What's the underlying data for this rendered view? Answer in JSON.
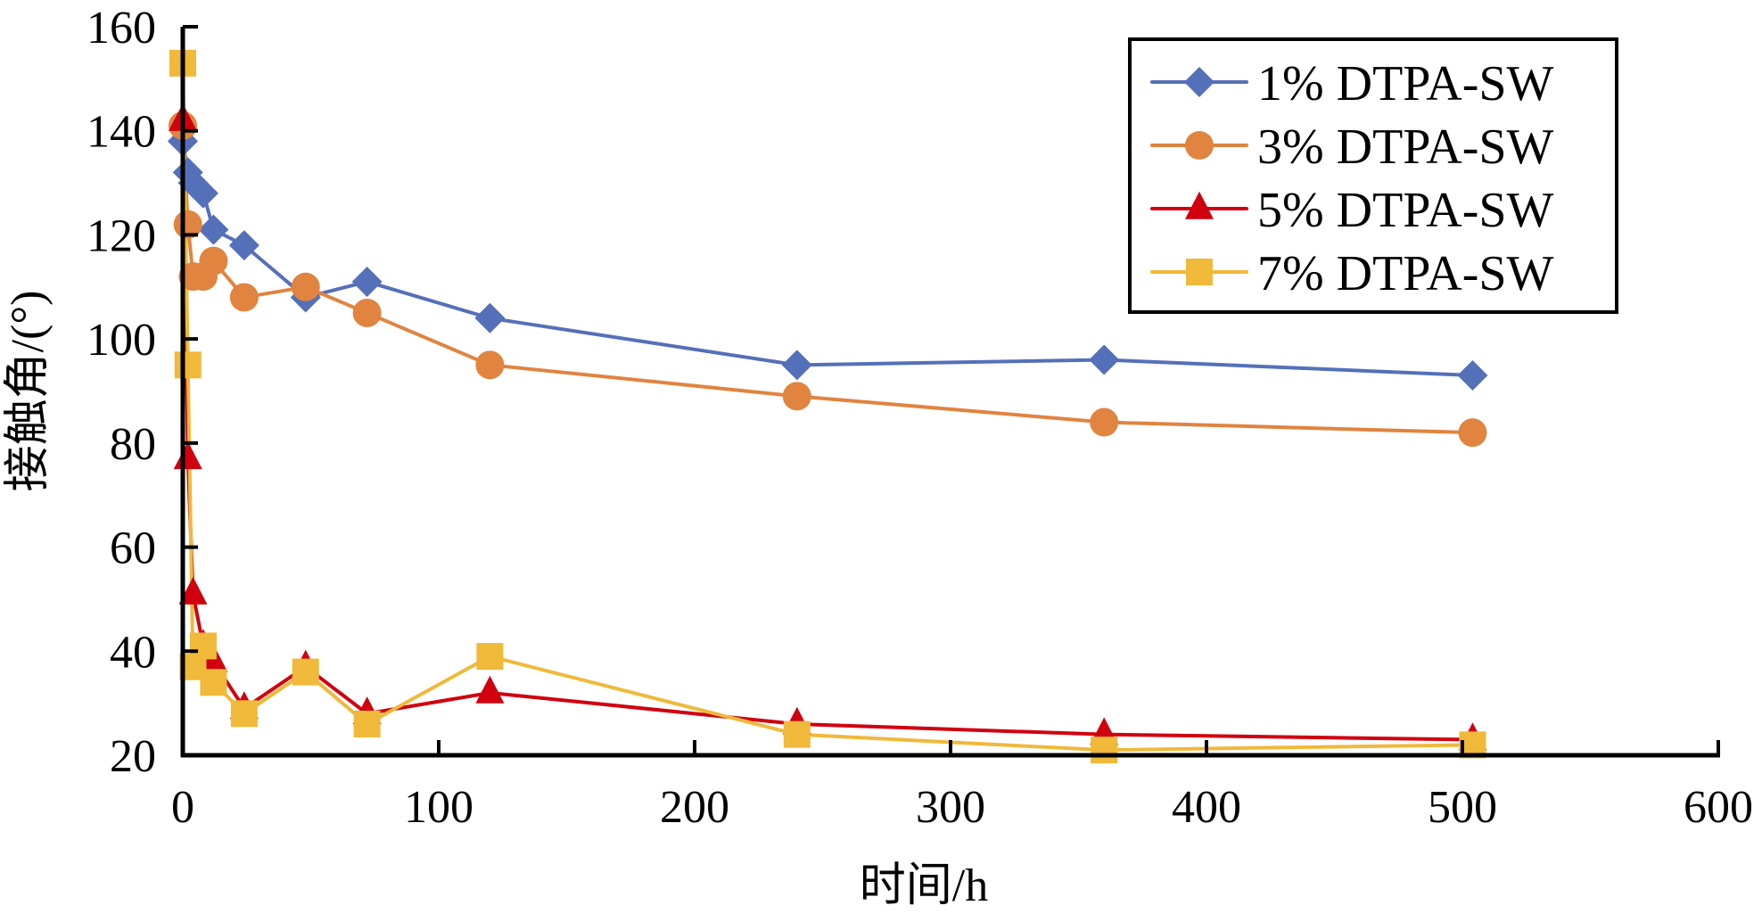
{
  "chart_data": {
    "type": "line",
    "title": "",
    "xlabel": "时间/h",
    "ylabel": "接触角/(°)",
    "xlim": [
      0,
      600
    ],
    "ylim": [
      20,
      160
    ],
    "xticks": [
      0,
      100,
      200,
      300,
      400,
      500,
      600
    ],
    "yticks": [
      20,
      40,
      60,
      80,
      100,
      120,
      140,
      160
    ],
    "grid": false,
    "legend_position": "top-right",
    "x": [
      0,
      2,
      4,
      8,
      12,
      24,
      48,
      72,
      120,
      240,
      360,
      504
    ],
    "series": [
      {
        "name": "1% DTPA-SW",
        "color": "#5470b8",
        "marker": "diamond",
        "values": [
          138,
          132,
          130,
          128,
          121,
          118,
          108,
          111,
          104,
          95,
          96,
          93
        ]
      },
      {
        "name": "3% DTPA-SW",
        "color": "#e0843f",
        "marker": "circle",
        "values": [
          141,
          122,
          112,
          112,
          115,
          108,
          110,
          105,
          95,
          89,
          84,
          82
        ]
      },
      {
        "name": "5% DTPA-SW",
        "color": "#d0000f",
        "marker": "triangle",
        "values": [
          142,
          77,
          51,
          41,
          38,
          29,
          37,
          28,
          32,
          26,
          24,
          23
        ]
      },
      {
        "name": "7% DTPA-SW",
        "color": "#f0b93a",
        "marker": "square",
        "values": [
          153,
          95,
          37,
          41,
          34,
          28,
          36,
          26,
          39,
          24,
          21,
          22
        ]
      }
    ]
  }
}
